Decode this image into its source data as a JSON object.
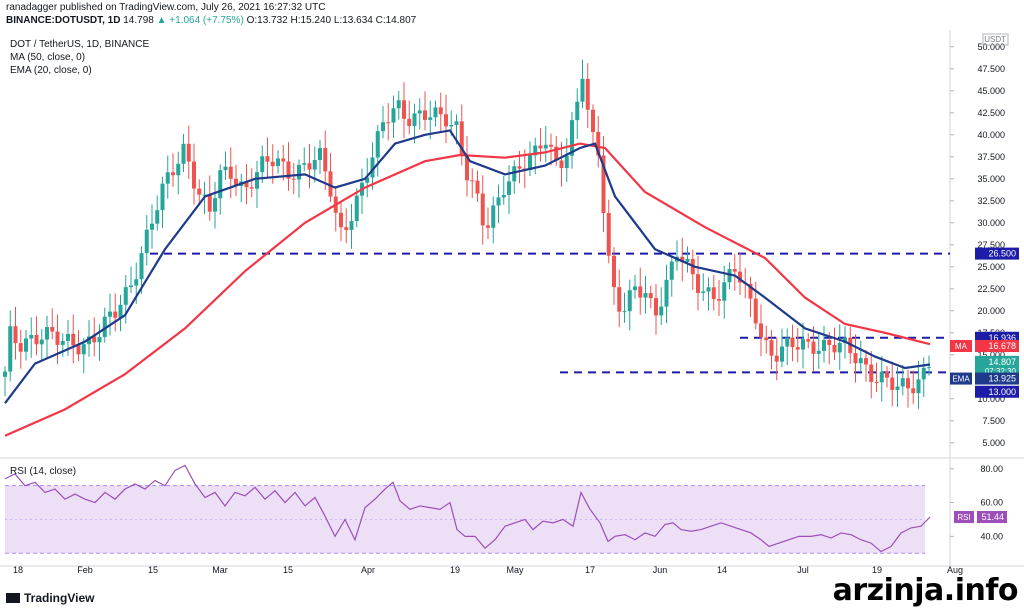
{
  "header": {
    "publisher": "ranadagger published on TradingView.com, July 26, 2021 16:27:32 UTC",
    "symbol": "BINANCE:DOTUSDT, 1D",
    "last": "14.798",
    "change": "▲ +1.064 (+7.75%)",
    "open": "O:13.732",
    "high": "H:15.240",
    "low": "L:13.634",
    "close": "C:14.807"
  },
  "legend": {
    "title": "DOT / TetherUS, 1D, BINANCE",
    "ma": "MA (50, close, 0)",
    "ema": "EMA (20, close, 0)",
    "rsi": "RSI (14, close)"
  },
  "footer": {
    "logo": "TradingView",
    "watermark": "arzinja.info"
  },
  "colors": {
    "up": "#26a69a",
    "down": "#ef5350",
    "ma": "#f23645",
    "ema": "#1e3a8a",
    "level": "#1c1ca8",
    "rsi": "#9c4fb8",
    "rsi_band": "#ede0f6"
  },
  "chart_data": [
    {
      "type": "candlestick",
      "currency": "USDT",
      "y_range": [
        3.5,
        51
      ],
      "y_ticks": [
        "5.000",
        "7.500",
        "10.000",
        "12.500",
        "15.000",
        "17.500",
        "20.000",
        "22.500",
        "25.000",
        "27.500",
        "30.000",
        "32.500",
        "35.000",
        "37.500",
        "40.000",
        "42.500",
        "45.000",
        "47.500",
        "50.000"
      ],
      "x_ticks": [
        "18",
        "Feb",
        "15",
        "Mar",
        "15",
        "Apr",
        "19",
        "May",
        "17",
        "Jun",
        "14",
        "Jul",
        "19",
        "Aug"
      ],
      "levels": [
        26.5,
        16.936,
        13.0
      ],
      "tags": [
        {
          "label": "",
          "value": "26.500",
          "y": 26.5,
          "color": "#1c1ca8"
        },
        {
          "label": "",
          "value": "16.936",
          "y": 16.936,
          "color": "#1c1ca8"
        },
        {
          "label": "MA",
          "value": "16.678",
          "y": 16.0,
          "color": "#f23645"
        },
        {
          "label": "",
          "value": "14.807",
          "sub": "07:32:30",
          "y": 14.2,
          "color": "#26a69a"
        },
        {
          "label": "EMA",
          "value": "13.925",
          "y": 12.3,
          "color": "#1e3a8a"
        },
        {
          "label": "",
          "value": "13.000",
          "y": 10.8,
          "color": "#1c1ca8"
        }
      ],
      "price_path": [
        [
          0,
          12.5
        ],
        [
          6,
          17.5
        ],
        [
          12,
          16.0
        ],
        [
          22,
          17.0
        ],
        [
          38,
          17.5
        ],
        [
          55,
          16.2
        ],
        [
          80,
          16.5
        ],
        [
          95,
          17.5
        ],
        [
          110,
          19.5
        ],
        [
          125,
          23
        ],
        [
          140,
          28
        ],
        [
          150,
          31
        ],
        [
          160,
          34
        ],
        [
          172,
          37
        ],
        [
          180,
          39
        ],
        [
          187,
          36
        ],
        [
          195,
          33
        ],
        [
          205,
          31
        ],
        [
          215,
          35
        ],
        [
          225,
          36
        ],
        [
          240,
          34
        ],
        [
          255,
          36
        ],
        [
          270,
          37
        ],
        [
          285,
          36
        ],
        [
          300,
          36.5
        ],
        [
          315,
          37
        ],
        [
          325,
          34
        ],
        [
          335,
          29
        ],
        [
          345,
          31
        ],
        [
          358,
          34
        ],
        [
          370,
          38
        ],
        [
          380,
          42
        ],
        [
          392,
          44
        ],
        [
          402,
          42
        ],
        [
          412,
          41.5
        ],
        [
          425,
          42
        ],
        [
          440,
          42.5
        ],
        [
          452,
          41
        ],
        [
          460,
          36
        ],
        [
          470,
          33
        ],
        [
          480,
          29
        ],
        [
          490,
          32
        ],
        [
          500,
          35
        ],
        [
          515,
          36
        ],
        [
          528,
          37
        ],
        [
          540,
          40
        ],
        [
          552,
          37
        ],
        [
          562,
          38
        ],
        [
          572,
          43
        ],
        [
          578,
          47
        ],
        [
          585,
          40
        ],
        [
          595,
          38
        ],
        [
          600,
          30
        ],
        [
          606,
          24
        ],
        [
          612,
          21
        ],
        [
          620,
          20
        ],
        [
          630,
          22
        ],
        [
          640,
          22
        ],
        [
          650,
          20
        ],
        [
          660,
          23
        ],
        [
          672,
          26.5
        ],
        [
          680,
          25
        ],
        [
          690,
          23
        ],
        [
          700,
          22.5
        ],
        [
          710,
          22
        ],
        [
          720,
          23
        ],
        [
          730,
          24.5
        ],
        [
          740,
          22
        ],
        [
          750,
          20
        ],
        [
          758,
          17
        ],
        [
          768,
          15
        ],
        [
          780,
          15.5
        ],
        [
          795,
          16
        ],
        [
          810,
          16.5
        ],
        [
          825,
          16
        ],
        [
          840,
          15.5
        ],
        [
          855,
          14.5
        ],
        [
          868,
          13
        ],
        [
          880,
          12
        ],
        [
          893,
          10.8
        ],
        [
          905,
          11.5
        ],
        [
          915,
          12.5
        ],
        [
          925,
          14.8
        ]
      ],
      "ma50_path": [
        [
          0,
          5.8
        ],
        [
          60,
          8.8
        ],
        [
          120,
          12.8
        ],
        [
          180,
          18
        ],
        [
          240,
          24.5
        ],
        [
          300,
          30
        ],
        [
          360,
          34
        ],
        [
          420,
          37
        ],
        [
          455,
          37.7
        ],
        [
          500,
          37.4
        ],
        [
          540,
          38
        ],
        [
          575,
          39
        ],
        [
          600,
          38.5
        ],
        [
          640,
          33.5
        ],
        [
          700,
          29.5
        ],
        [
          760,
          26
        ],
        [
          800,
          21.5
        ],
        [
          840,
          18.5
        ],
        [
          880,
          17.5
        ],
        [
          925,
          16.2
        ]
      ],
      "ema20_path": [
        [
          0,
          9.5
        ],
        [
          30,
          14
        ],
        [
          80,
          16.5
        ],
        [
          120,
          19.5
        ],
        [
          160,
          27
        ],
        [
          200,
          33
        ],
        [
          250,
          35
        ],
        [
          300,
          35.5
        ],
        [
          330,
          34
        ],
        [
          360,
          35
        ],
        [
          390,
          39
        ],
        [
          420,
          40
        ],
        [
          445,
          40.5
        ],
        [
          465,
          37
        ],
        [
          500,
          35.5
        ],
        [
          540,
          36.5
        ],
        [
          575,
          38.5
        ],
        [
          590,
          39
        ],
        [
          610,
          33
        ],
        [
          650,
          27
        ],
        [
          690,
          25
        ],
        [
          730,
          24
        ],
        [
          760,
          21.5
        ],
        [
          800,
          18
        ],
        [
          840,
          16.5
        ],
        [
          870,
          14.8
        ],
        [
          900,
          13.5
        ],
        [
          925,
          13.9
        ]
      ]
    },
    {
      "type": "line",
      "name": "RSI",
      "y_range": [
        26,
        84
      ],
      "y_ticks": [
        "40.00",
        "60.00",
        "80.00"
      ],
      "band": [
        30,
        70
      ],
      "last": "51.44",
      "values": [
        [
          0,
          74
        ],
        [
          10,
          77
        ],
        [
          20,
          70
        ],
        [
          30,
          72
        ],
        [
          40,
          66
        ],
        [
          50,
          68
        ],
        [
          60,
          62
        ],
        [
          70,
          65
        ],
        [
          80,
          62
        ],
        [
          90,
          60
        ],
        [
          100,
          66
        ],
        [
          110,
          62
        ],
        [
          120,
          68
        ],
        [
          130,
          71
        ],
        [
          140,
          68
        ],
        [
          150,
          73
        ],
        [
          160,
          70
        ],
        [
          170,
          79
        ],
        [
          180,
          82
        ],
        [
          190,
          71
        ],
        [
          200,
          63
        ],
        [
          210,
          66
        ],
        [
          220,
          58
        ],
        [
          230,
          66
        ],
        [
          240,
          64
        ],
        [
          250,
          69
        ],
        [
          260,
          62
        ],
        [
          270,
          67
        ],
        [
          280,
          60
        ],
        [
          290,
          66
        ],
        [
          300,
          58
        ],
        [
          310,
          63
        ],
        [
          320,
          52
        ],
        [
          330,
          40
        ],
        [
          340,
          50
        ],
        [
          350,
          38
        ],
        [
          360,
          57
        ],
        [
          370,
          62
        ],
        [
          380,
          68
        ],
        [
          388,
          72
        ],
        [
          395,
          61
        ],
        [
          405,
          56
        ],
        [
          415,
          58
        ],
        [
          425,
          57
        ],
        [
          435,
          56
        ],
        [
          445,
          60
        ],
        [
          452,
          44
        ],
        [
          460,
          40
        ],
        [
          470,
          40
        ],
        [
          480,
          33
        ],
        [
          490,
          38
        ],
        [
          500,
          46
        ],
        [
          510,
          48
        ],
        [
          520,
          50
        ],
        [
          528,
          44
        ],
        [
          538,
          49
        ],
        [
          548,
          48
        ],
        [
          558,
          50
        ],
        [
          568,
          46
        ],
        [
          576,
          66
        ],
        [
          585,
          56
        ],
        [
          595,
          48
        ],
        [
          603,
          37
        ],
        [
          610,
          40
        ],
        [
          620,
          41
        ],
        [
          630,
          38
        ],
        [
          640,
          42
        ],
        [
          650,
          40
        ],
        [
          660,
          47
        ],
        [
          668,
          48
        ],
        [
          676,
          44
        ],
        [
          686,
          43
        ],
        [
          696,
          44
        ],
        [
          706,
          46
        ],
        [
          716,
          48
        ],
        [
          726,
          46
        ],
        [
          736,
          44
        ],
        [
          746,
          42
        ],
        [
          756,
          38
        ],
        [
          764,
          34
        ],
        [
          774,
          36
        ],
        [
          784,
          38
        ],
        [
          794,
          40
        ],
        [
          806,
          40
        ],
        [
          816,
          41
        ],
        [
          826,
          39
        ],
        [
          836,
          42
        ],
        [
          846,
          41
        ],
        [
          856,
          38
        ],
        [
          866,
          36
        ],
        [
          876,
          31
        ],
        [
          886,
          34
        ],
        [
          896,
          42
        ],
        [
          906,
          45
        ],
        [
          916,
          46
        ],
        [
          925,
          51.44
        ]
      ]
    }
  ]
}
